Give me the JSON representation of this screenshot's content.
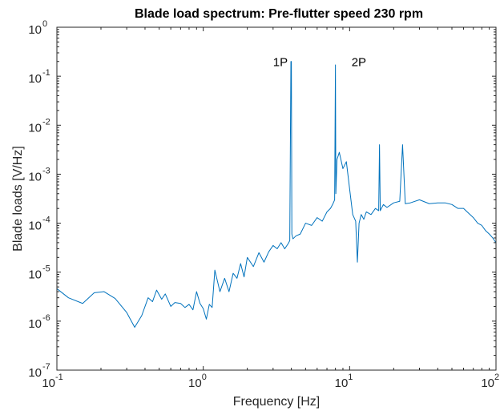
{
  "chart_data": {
    "type": "line",
    "title": "Blade load spectrum: Pre-flutter speed 230 rpm",
    "xlabel": "Frequency [Hz]",
    "ylabel": "Blade loads [V/Hz]",
    "xscale": "log",
    "yscale": "log",
    "xlim": [
      0.1,
      100
    ],
    "ylim": [
      1e-07,
      1
    ],
    "grid": false,
    "legend": "none",
    "line_color": "#0072BD",
    "x_ticks": [
      {
        "base": "10",
        "exp": "-1",
        "value": 0.1
      },
      {
        "base": "10",
        "exp": "0",
        "value": 1
      },
      {
        "base": "10",
        "exp": "1",
        "value": 10
      },
      {
        "base": "10",
        "exp": "2",
        "value": 100
      }
    ],
    "y_ticks": [
      {
        "base": "10",
        "exp": "-7",
        "value": 1e-07
      },
      {
        "base": "10",
        "exp": "-6",
        "value": 1e-06
      },
      {
        "base": "10",
        "exp": "-5",
        "value": 1e-05
      },
      {
        "base": "10",
        "exp": "-4",
        "value": 0.0001
      },
      {
        "base": "10",
        "exp": "-3",
        "value": 0.001
      },
      {
        "base": "10",
        "exp": "-2",
        "value": 0.01
      },
      {
        "base": "10",
        "exp": "-1",
        "value": 0.1
      },
      {
        "base": "10",
        "exp": "0",
        "value": 1
      }
    ],
    "annotations": [
      {
        "text": "1P",
        "x": 3.0,
        "y": 0.2
      },
      {
        "text": "2P",
        "x": 10.3,
        "y": 0.2
      }
    ],
    "series": [
      {
        "x": [
          0.1,
          0.12,
          0.15,
          0.18,
          0.21,
          0.25,
          0.3,
          0.34,
          0.38,
          0.42,
          0.45,
          0.48,
          0.52,
          0.55,
          0.6,
          0.64,
          0.7,
          0.75,
          0.8,
          0.85,
          0.9,
          0.95,
          1.0,
          1.05,
          1.1,
          1.15,
          1.2,
          1.3,
          1.4,
          1.5,
          1.6,
          1.7,
          1.8,
          1.9,
          2.0,
          2.2,
          2.4,
          2.6,
          2.8,
          3.0,
          3.2,
          3.4,
          3.6,
          3.8,
          3.9,
          3.97,
          4.0,
          4.03,
          4.1,
          4.3,
          4.6,
          5.0,
          5.5,
          6.0,
          6.5,
          7.0,
          7.4,
          7.7,
          7.9,
          8.0,
          8.05,
          8.2,
          8.5,
          9.0,
          9.5,
          10.0,
          10.5,
          11.0,
          11.3,
          11.6,
          12.0,
          12.5,
          13.0,
          14.0,
          15.0,
          15.8,
          16.0,
          16.2,
          17.0,
          18.0,
          20.0,
          22.0,
          23.0,
          24.0,
          26.0,
          30.0,
          35.0,
          40.0,
          45.0,
          50.0,
          55.0,
          60.0,
          65.0,
          70.0,
          75.0,
          80.0,
          85.0,
          90.0,
          95.0,
          100.0
        ],
        "y": [
          4.6e-06,
          3e-06,
          2.3e-06,
          3.8e-06,
          4e-06,
          2.9e-06,
          1.5e-06,
          7.5e-07,
          1.3e-06,
          3e-06,
          2.5e-06,
          4.3e-06,
          2.8e-06,
          3.6e-06,
          2e-06,
          2.4e-06,
          2.3e-06,
          1.9e-06,
          2.2e-06,
          1.7e-06,
          4e-06,
          2.3e-06,
          1.8e-06,
          1.1e-06,
          2.2e-06,
          1.9e-06,
          1.1e-05,
          4e-06,
          7.5e-06,
          4e-06,
          9.5e-06,
          7.5e-06,
          1.5e-05,
          8e-06,
          2e-05,
          1.3e-05,
          2.5e-05,
          1.6e-05,
          2.6e-05,
          3.5e-05,
          3e-05,
          4e-05,
          3e-05,
          3.8e-05,
          4.4e-05,
          0.2,
          0.2,
          6e-05,
          4.8e-05,
          5.5e-05,
          6e-05,
          0.0001,
          9e-05,
          0.00013,
          0.00011,
          0.00017,
          0.0002,
          0.00025,
          0.0003,
          0.17,
          0.0004,
          0.002,
          0.0028,
          0.0013,
          0.0018,
          0.0005,
          0.00015,
          0.00011,
          1.6e-05,
          0.0001,
          0.00015,
          0.00012,
          0.00017,
          0.00015,
          0.0002,
          0.00018,
          0.004,
          0.00018,
          0.00024,
          0.00021,
          0.00026,
          0.00028,
          0.004,
          0.00025,
          0.00026,
          0.0003,
          0.00025,
          0.00026,
          0.00026,
          0.00024,
          0.0002,
          0.0002,
          0.00016,
          0.00013,
          0.0001,
          9e-05,
          7e-05,
          6e-05,
          5e-05,
          4e-05
        ]
      }
    ]
  }
}
